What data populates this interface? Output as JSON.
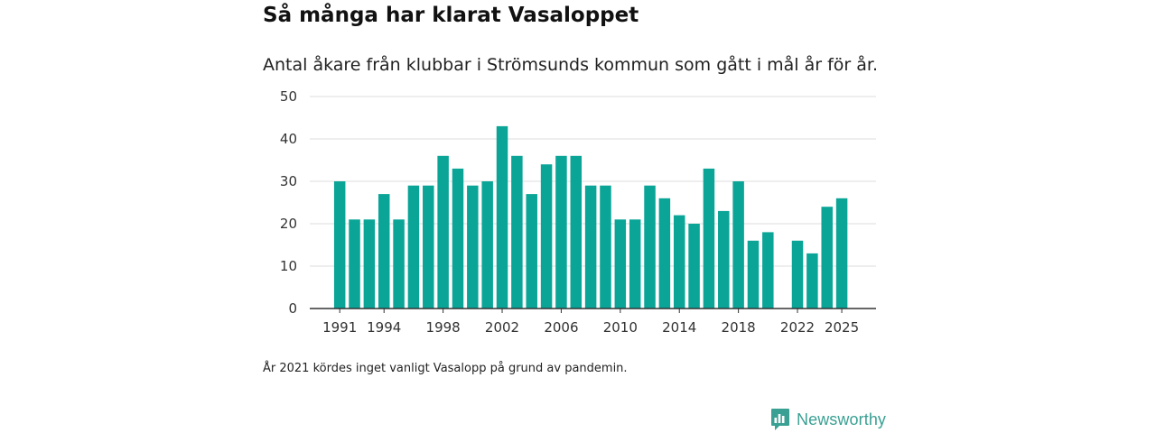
{
  "title": "Så många har klarat Vasaloppet",
  "subtitle": "Antal åkare från klubbar i Strömsunds kommun som gått i mål år för år.",
  "footnote": "År 2021 kördes inget vanligt Vasalopp på grund av pandemin.",
  "brand": {
    "name": "Newsworthy",
    "icon": "newsworthy-logo-icon",
    "color": "#3aa093"
  },
  "colors": {
    "bar": "#0aa597",
    "grid": "#dddddd",
    "axis": "#333333"
  },
  "chart_data": {
    "type": "bar",
    "title": "Så många har klarat Vasaloppet",
    "xlabel": "",
    "ylabel": "",
    "ylim": [
      0,
      50
    ],
    "yticks": [
      0,
      10,
      20,
      30,
      40,
      50
    ],
    "grid": true,
    "xtick_labels": [
      "1991",
      "1994",
      "1998",
      "2002",
      "2006",
      "2010",
      "2014",
      "2018",
      "2022",
      "2025"
    ],
    "categories": [
      1991,
      1992,
      1993,
      1994,
      1995,
      1996,
      1997,
      1998,
      1999,
      2000,
      2001,
      2002,
      2003,
      2004,
      2005,
      2006,
      2007,
      2008,
      2009,
      2010,
      2011,
      2012,
      2013,
      2014,
      2015,
      2016,
      2017,
      2018,
      2019,
      2020,
      2021,
      2022,
      2023,
      2024,
      2025
    ],
    "values": [
      30,
      21,
      21,
      27,
      21,
      29,
      29,
      36,
      33,
      29,
      30,
      43,
      36,
      27,
      34,
      36,
      36,
      29,
      29,
      21,
      21,
      29,
      26,
      22,
      20,
      33,
      23,
      30,
      16,
      18,
      null,
      16,
      13,
      24,
      26
    ]
  }
}
